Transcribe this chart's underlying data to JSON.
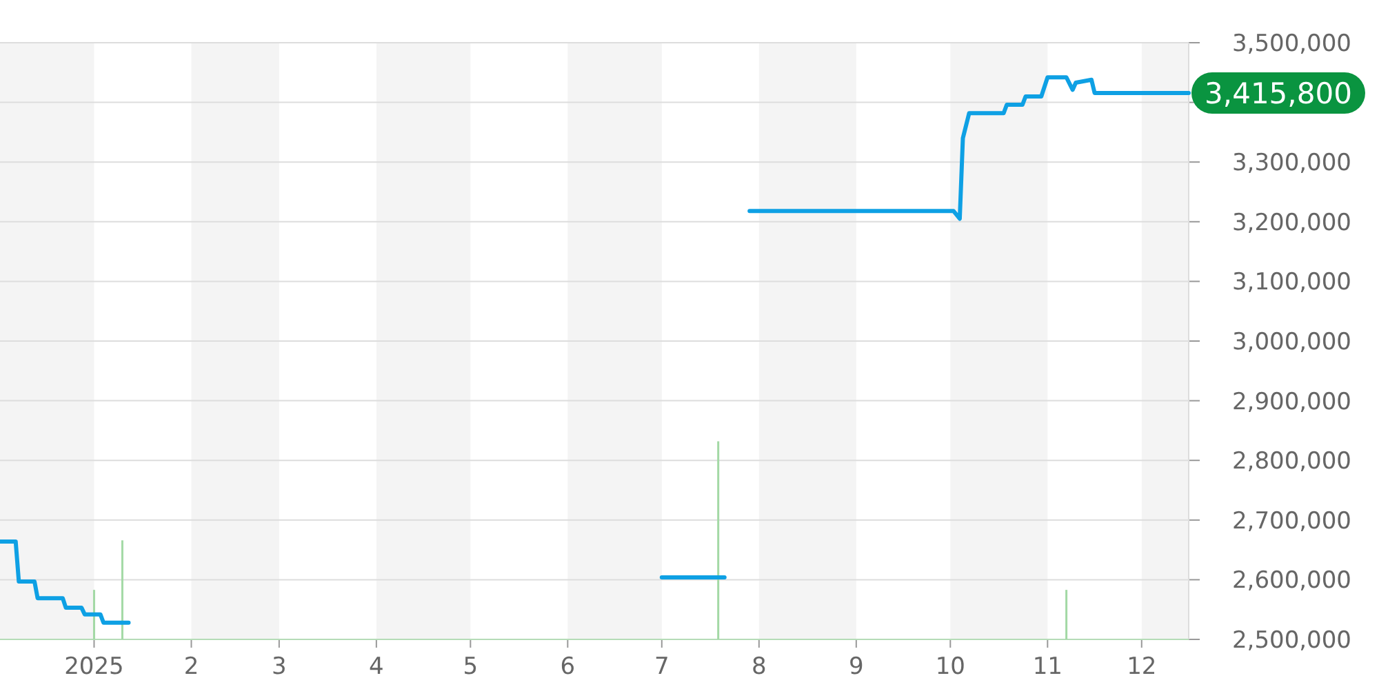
{
  "chart_data": {
    "type": "line",
    "xlim": [
      "2024-12-02",
      "2025-12-16"
    ],
    "xticks": [
      {
        "value": "2025-01-01",
        "label": "2025"
      },
      {
        "value": "2025-02-01",
        "label": "2"
      },
      {
        "value": "2025-03-01",
        "label": "3"
      },
      {
        "value": "2025-04-01",
        "label": "4"
      },
      {
        "value": "2025-05-01",
        "label": "5"
      },
      {
        "value": "2025-06-01",
        "label": "6"
      },
      {
        "value": "2025-07-01",
        "label": "7"
      },
      {
        "value": "2025-08-01",
        "label": "8"
      },
      {
        "value": "2025-09-01",
        "label": "9"
      },
      {
        "value": "2025-10-01",
        "label": "10"
      },
      {
        "value": "2025-11-01",
        "label": "11"
      },
      {
        "value": "2025-12-01",
        "label": "12"
      }
    ],
    "ylim": [
      2500000,
      3500000
    ],
    "yticks": [
      {
        "value": 2500000,
        "label": "2,500,000"
      },
      {
        "value": 2600000,
        "label": "2,600,000"
      },
      {
        "value": 2700000,
        "label": "2,700,000"
      },
      {
        "value": 2800000,
        "label": "2,800,000"
      },
      {
        "value": 2900000,
        "label": "2,900,000"
      },
      {
        "value": 3000000,
        "label": "3,000,000"
      },
      {
        "value": 3100000,
        "label": "3,100,000"
      },
      {
        "value": 3200000,
        "label": "3,200,000"
      },
      {
        "value": 3300000,
        "label": "3,300,000"
      },
      {
        "value": 3400000,
        "label": null
      },
      {
        "value": 3500000,
        "label": "3,500,000"
      }
    ],
    "grid": "y",
    "bands": [
      {
        "axis": "x",
        "from": "2024-12-02",
        "to": "2025-01-01",
        "color": "#f4f4f4"
      },
      {
        "axis": "x",
        "from": "2025-02-01",
        "to": "2025-03-01",
        "color": "#f4f4f4"
      },
      {
        "axis": "x",
        "from": "2025-04-01",
        "to": "2025-05-01",
        "color": "#f4f4f4"
      },
      {
        "axis": "x",
        "from": "2025-06-01",
        "to": "2025-07-01",
        "color": "#f4f4f4"
      },
      {
        "axis": "x",
        "from": "2025-08-01",
        "to": "2025-09-01",
        "color": "#f4f4f4"
      },
      {
        "axis": "x",
        "from": "2025-10-01",
        "to": "2025-11-01",
        "color": "#f4f4f4"
      },
      {
        "axis": "x",
        "from": "2025-12-01",
        "to": "2025-12-16",
        "color": "#f4f4f4"
      }
    ],
    "series": [
      {
        "type": "bar",
        "color": "#a3d9a5",
        "x": [
          "2025-01-01",
          "2025-01-10",
          "2025-07-19",
          "2025-11-07"
        ],
        "values": [
          2583000,
          2666000,
          2832000,
          2583000
        ]
      },
      {
        "color": "#0ea0e4",
        "x": [
          "2024-12-02",
          "2024-12-07",
          "2024-12-08",
          "2024-12-13",
          "2024-12-14",
          "2024-12-22",
          "2024-12-23",
          "2024-12-28",
          "2024-12-29",
          "2025-01-03",
          "2025-01-04",
          "2025-01-12",
          "2025-01-13",
          "2025-07-01",
          "2025-07-21",
          "2025-07-25",
          "2025-07-29",
          "2025-10-02",
          "2025-10-04",
          "2025-10-05",
          "2025-10-07",
          "2025-10-18",
          "2025-10-19",
          "2025-10-24",
          "2025-10-25",
          "2025-10-30",
          "2025-11-01",
          "2025-11-07",
          "2025-11-09",
          "2025-11-10",
          "2025-11-15",
          "2025-11-16",
          "2025-12-16"
        ],
        "values": [
          2664000,
          2664000,
          2597000,
          2597000,
          2569000,
          2569000,
          2553000,
          2553000,
          2542000,
          2542000,
          2528000,
          2528000,
          null,
          2604000,
          2604000,
          null,
          3218000,
          3218000,
          3205000,
          3340000,
          3382000,
          3382000,
          3396000,
          3396000,
          3410000,
          3410000,
          3442000,
          3442000,
          3421000,
          3433000,
          3438000,
          3415800,
          3415800
        ]
      }
    ],
    "annotations": [
      {
        "text": "3,415,800",
        "x": "2025-12-16",
        "y": 3415800
      }
    ]
  }
}
